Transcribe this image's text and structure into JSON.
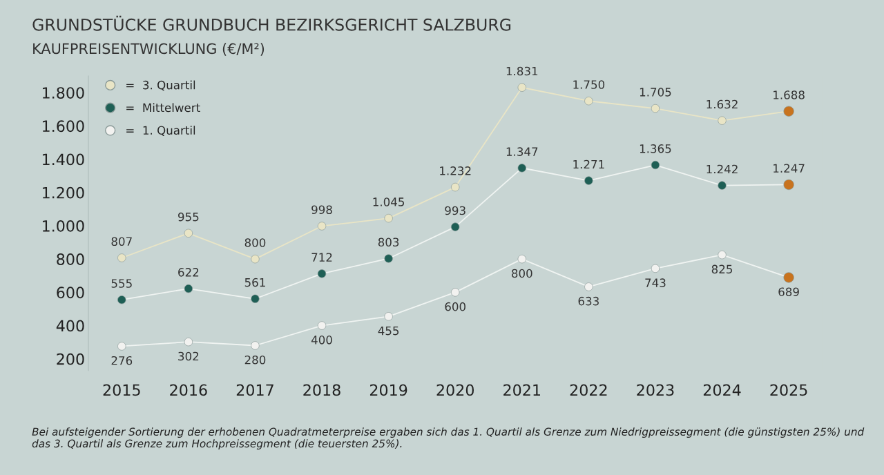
{
  "chart_data": {
    "type": "line",
    "title": "GRUNDSTÜCKE GRUNDBUCH BEZIRKSGERICHT SALZBURG",
    "subtitle": "KAUFPREISENTWICKLUNG (€/M²)",
    "categories": [
      "2015",
      "2016",
      "2017",
      "2018",
      "2019",
      "2020",
      "2021",
      "2022",
      "2023",
      "2024",
      "2025"
    ],
    "series": [
      {
        "name": "=  3. Quartil",
        "color": "#e9e5c6",
        "colors": [
          "#e9e5c6",
          "#e9e5c6",
          "#e9e5c6",
          "#e9e5c6",
          "#e9e5c6",
          "#e9e5c6",
          "#e9e5c6",
          "#e9e5c6",
          "#e9e5c6",
          "#e9e5c6",
          "#c8731e"
        ],
        "values": [
          807,
          955,
          800,
          998,
          1045,
          1232,
          1831,
          1750,
          1705,
          1632,
          1688
        ],
        "value_labels": [
          "807",
          "955",
          "800",
          "998",
          "1.045",
          "1.232",
          "1.831",
          "1.750",
          "1.705",
          "1.632",
          "1.688"
        ]
      },
      {
        "name": "=  Mittelwert",
        "color": "#1e5f55",
        "colors": [
          "#1e5f55",
          "#1e5f55",
          "#1e5f55",
          "#1e5f55",
          "#1e5f55",
          "#1e5f55",
          "#1e5f55",
          "#1e5f55",
          "#1e5f55",
          "#1e5f55",
          "#c8731e"
        ],
        "values": [
          555,
          622,
          561,
          712,
          803,
          993,
          1347,
          1271,
          1365,
          1242,
          1247
        ],
        "value_labels": [
          "555",
          "622",
          "561",
          "712",
          "803",
          "993",
          "1.347",
          "1.271",
          "1.365",
          "1.242",
          "1.247"
        ]
      },
      {
        "name": "=  1. Quartil",
        "color": "#f2f2f0",
        "colors": [
          "#f2f2f0",
          "#f2f2f0",
          "#f2f2f0",
          "#f2f2f0",
          "#f2f2f0",
          "#f2f2f0",
          "#f2f2f0",
          "#f2f2f0",
          "#f2f2f0",
          "#f2f2f0",
          "#c8731e"
        ],
        "values": [
          276,
          302,
          280,
          400,
          455,
          600,
          800,
          633,
          743,
          825,
          689
        ],
        "value_labels": [
          "276",
          "302",
          "280",
          "400",
          "455",
          "600",
          "800",
          "633",
          "743",
          "825",
          "689"
        ]
      }
    ],
    "ylim": [
      130,
      1900
    ],
    "yticks": [
      200,
      400,
      600,
      800,
      {
        "value": 1000,
        "label": "1.000"
      },
      {
        "value": 1200,
        "label": "1.200"
      },
      {
        "value": 1400,
        "label": "1.400"
      },
      {
        "value": 1600,
        "label": "1.600"
      },
      {
        "value": 1800,
        "label": "1.800"
      }
    ],
    "marker": "circle",
    "line_style": "solid",
    "grid": false,
    "legend": "top left",
    "annotations": [
      "Bei aufsteigender Sortierung der erhobenen Quadratmeterpreise ergaben sich das 1. Quartil als Grenze zum Niedrigpreissegment (die günstigsten 25%) und das 3. Quartil als Grenze zum Hochpreissegment (die teuersten 25%)."
    ]
  }
}
